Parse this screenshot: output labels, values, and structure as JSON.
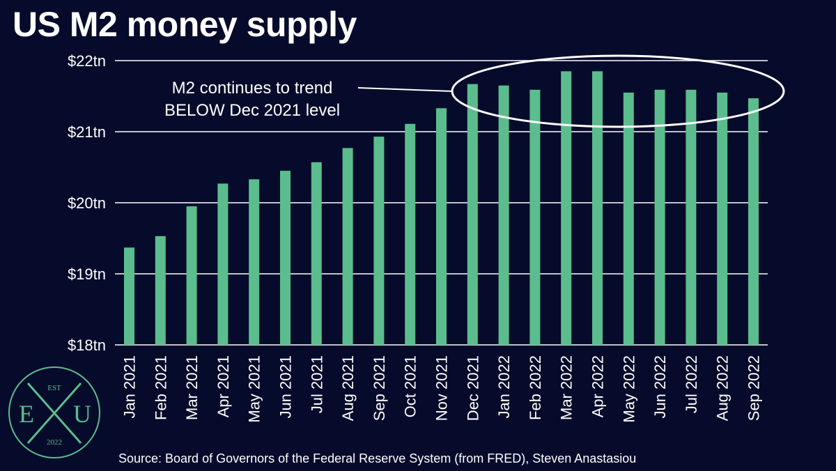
{
  "title": "US M2 money supply",
  "source": "Source: Board of Governors of the Federal Reserve System (from FRED), Steven Anastasiou",
  "colors": {
    "background": "#070b2b",
    "bar": "#5bbd8d",
    "grid": "#ffffff",
    "text": "#ffffff",
    "logo": "#5bbd8d"
  },
  "logo": {
    "top": "EST",
    "left": "E",
    "middle": "X",
    "right": "U",
    "bottom": "2022"
  },
  "chart_data": {
    "type": "bar",
    "title": "US M2 money supply",
    "xlabel": "",
    "ylabel": "",
    "ylim": [
      18,
      22
    ],
    "yticks": [
      18,
      19,
      20,
      21,
      22
    ],
    "ytick_labels": [
      "$18tn",
      "$19tn",
      "$20tn",
      "$21tn",
      "$22tn"
    ],
    "grid": true,
    "categories": [
      "Jan 2021",
      "Feb 2021",
      "Mar 2021",
      "Apr 2021",
      "May 2021",
      "Jun 2021",
      "Jul 2021",
      "Aug 2021",
      "Sep 2021",
      "Oct 2021",
      "Nov 2021",
      "Dec 2021",
      "Jan 2022",
      "Feb 2022",
      "Mar 2022",
      "Apr 2022",
      "May 2022",
      "Jun 2022",
      "Jul 2022",
      "Aug 2022",
      "Sep 2022"
    ],
    "values": [
      19.37,
      19.53,
      19.95,
      20.27,
      20.33,
      20.45,
      20.57,
      20.77,
      20.93,
      21.11,
      21.33,
      21.67,
      21.65,
      21.59,
      21.85,
      21.85,
      21.55,
      21.59,
      21.59,
      21.55,
      21.47
    ],
    "annotation": {
      "lines": [
        "M2 continues to trend",
        "BELOW Dec 2021 level"
      ]
    }
  }
}
